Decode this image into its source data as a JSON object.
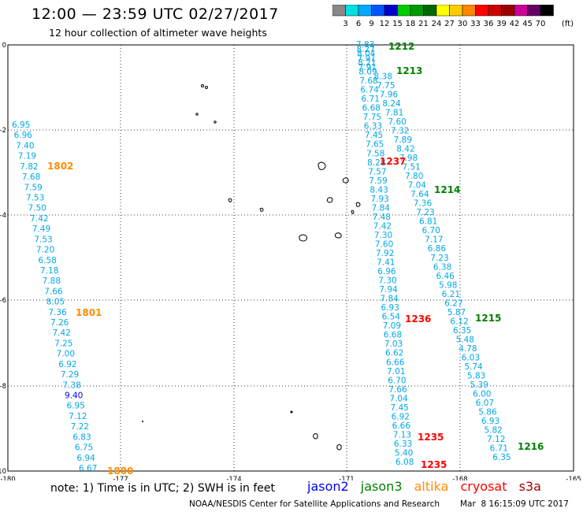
{
  "header": {
    "title": "12:00 — 23:59 UTC 02/27/2017",
    "subtitle": "12 hour collection of altimeter wave heights"
  },
  "colorbar": {
    "unit": "(ft)",
    "labels": [
      "3",
      "6",
      "9",
      "12",
      "15",
      "18",
      "21",
      "24",
      "27",
      "30",
      "33",
      "36",
      "39",
      "42",
      "45",
      "70"
    ],
    "colors": [
      "#888888",
      "#00e0e0",
      "#00aaff",
      "#0055ff",
      "#0000cc",
      "#00cc00",
      "#009900",
      "#006600",
      "#ffff00",
      "#ffcc00",
      "#ff8800",
      "#ff0000",
      "#cc0000",
      "#990000",
      "#cc0099",
      "#660066",
      "#000000"
    ]
  },
  "axes": {
    "x_ticks": [
      "-180",
      "-177",
      "-174",
      "-171",
      "-168",
      "-165"
    ],
    "y_ticks": [
      "0",
      "-2",
      "-4",
      "-6",
      "-8",
      "-10"
    ]
  },
  "colors": {
    "jason2": "#0000ff",
    "jason3": "#008000",
    "altika": "#ff8c00",
    "cryosat": "#ff0000",
    "s3a": "#aa0000",
    "swh": "#00a8e8"
  },
  "tracks": [
    {
      "id": "t1800",
      "values": [
        "6.95",
        "6.96",
        "7.40",
        "7.19",
        "7.82",
        "7.68",
        "7.59",
        "7.53",
        "7.50",
        "7.42",
        "7.49",
        "7.53",
        "7.20",
        "6.58",
        "7.18",
        "7.88",
        "7.66",
        "8.05",
        "7.36",
        "7.26",
        "7.42",
        "7.25",
        "7.00",
        "6.92",
        "7.29",
        "7.38",
        "9.40",
        "6.95",
        "7.12",
        "7.22",
        "6.83",
        "6.75",
        "6.94",
        "6.67"
      ],
      "colors": [
        "",
        "",
        "",
        "",
        "",
        "",
        "",
        "",
        "",
        "",
        "",
        "",
        "",
        "",
        "",
        "",
        "",
        "",
        "",
        "",
        "",
        "",
        "",
        "",
        "",
        "",
        "jason2",
        "",
        "",
        "",
        "",
        "",
        "",
        ""
      ],
      "times": [
        {
          "text": "1802",
          "color": "altika"
        },
        {
          "text": "1801",
          "color": "altika"
        },
        {
          "text": "1800",
          "color": "altika"
        }
      ]
    },
    {
      "id": "t1212",
      "values": [
        "7.83",
        "8.27",
        "8.04",
        "7.91",
        "8.21",
        "7.91",
        "8.09",
        "8.38",
        "7.68",
        "7.75",
        "6.74",
        "7.96",
        "6.71",
        "8.24",
        "6.68",
        "7.81",
        "7.75",
        "7.60",
        "6.33",
        "7.32",
        "7.45",
        "7.89",
        "7.65",
        "8.42",
        "7.58",
        "7.98",
        "8.28",
        "7.51",
        "7.57",
        "7.80",
        "7.59",
        "7.04",
        "8.43",
        "7.64",
        "7.93",
        "7.36",
        "7.84",
        "7.23",
        "7.48",
        "6.81",
        "7.42",
        "6.70",
        "7.30",
        "7.17",
        "7.60",
        "6.86",
        "7.92",
        "7.23",
        "7.41",
        "6.38",
        "6.96",
        "6.46",
        "7.30",
        "5.98",
        "7.94",
        "6.21",
        "7.84",
        "6.27",
        "6.93",
        "5.87",
        "6.54",
        "6.12",
        "7.09",
        "6.35",
        "6.68",
        "5.48",
        "7.03",
        "4.78",
        "6.62",
        "6.03",
        "6.66",
        "5.74",
        "7.01",
        "5.83",
        "6.70",
        "5.39",
        "7.66",
        "6.00",
        "7.04",
        "6.07",
        "7.45",
        "5.86",
        "6.92",
        "6.93",
        "6.66",
        "5.82",
        "7.13",
        "7.12",
        "6.33",
        "6.71",
        "5.40",
        "6.35",
        "6.08"
      ],
      "times": [
        {
          "text": "1212",
          "color": "jason3"
        },
        {
          "text": "1213",
          "color": "jason3"
        },
        {
          "text": "1237",
          "color": "cryosat"
        },
        {
          "text": "1214",
          "color": "jason3"
        },
        {
          "text": "1236",
          "color": "cryosat"
        },
        {
          "text": "1215",
          "color": "jason3"
        },
        {
          "text": "1235",
          "color": "cryosat"
        },
        {
          "text": "1216",
          "color": "jason3"
        },
        {
          "text": "1235",
          "color": "cryosat"
        }
      ]
    }
  ],
  "legend": {
    "jason2": "jason2",
    "jason3": "jason3",
    "altika": "altika",
    "cryosat": "cryosat",
    "s3a": "s3a"
  },
  "notes": {
    "text": "note: 1) Time is in UTC; 2) SWH is in feet"
  },
  "footer": {
    "credit": "NOAA/NESDIS Center for Satellite Applications and Research",
    "timestamp": "Mar  8 16:15:09 UTC 2017"
  }
}
